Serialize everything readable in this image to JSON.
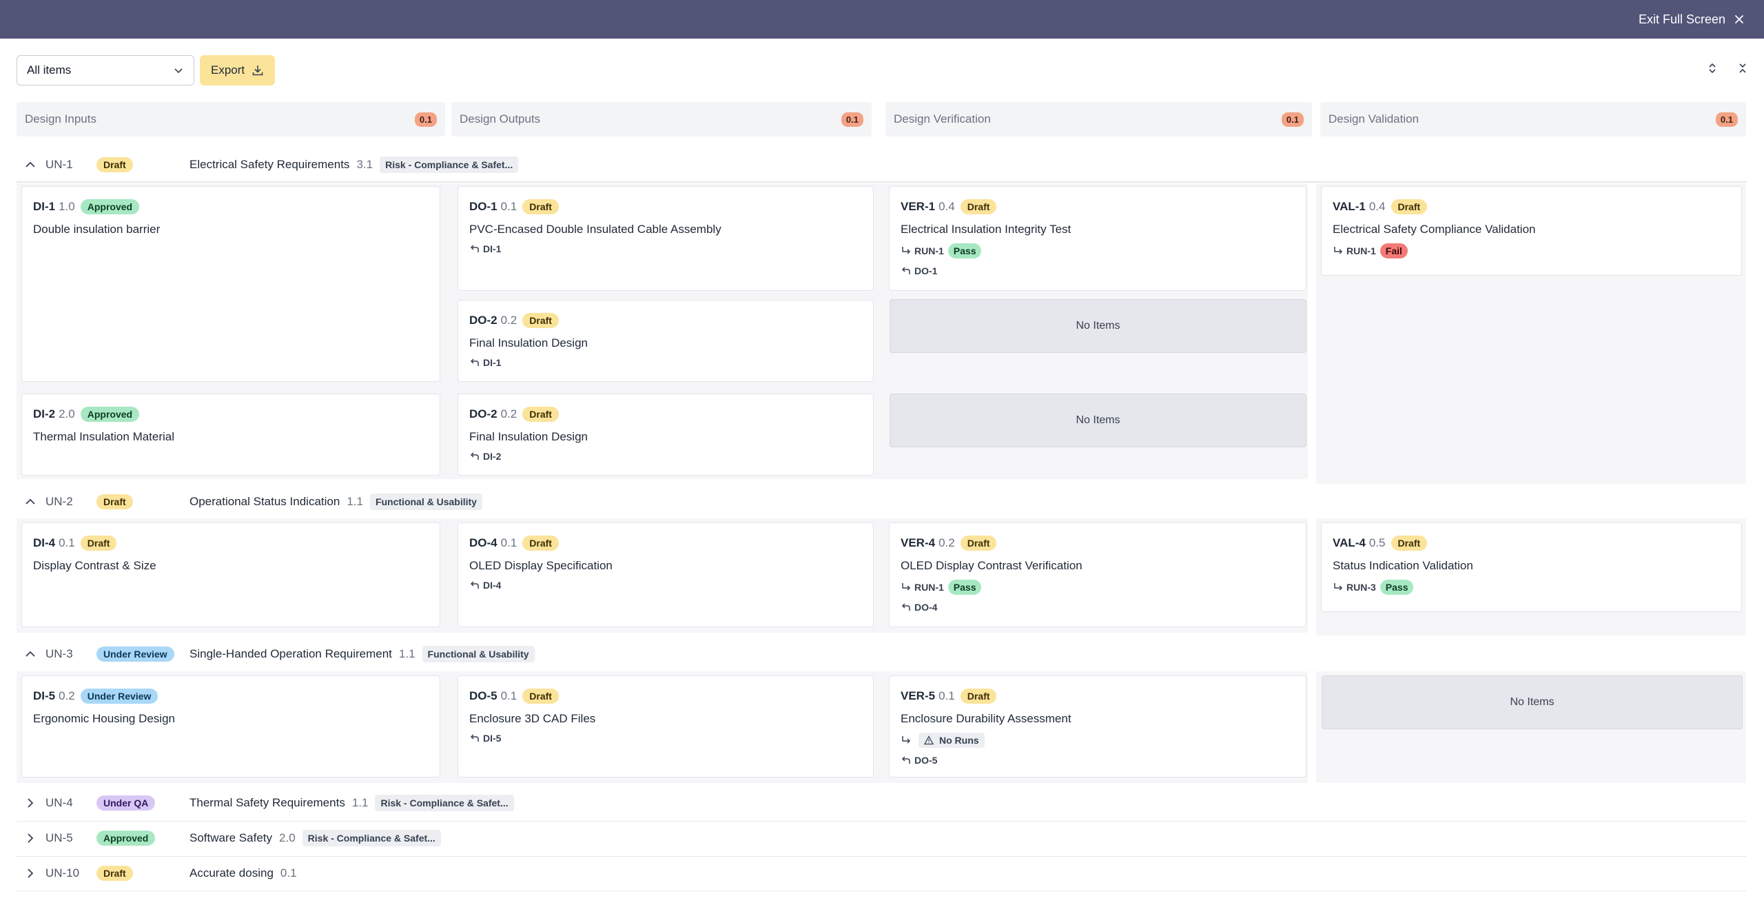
{
  "header": {
    "exit_label": "Exit Full Screen"
  },
  "toolbar": {
    "filter_value": "All items",
    "export_label": "Export"
  },
  "columns": [
    {
      "title": "Design Inputs",
      "badge": "0.1"
    },
    {
      "title": "Design Outputs",
      "badge": "0.1"
    },
    {
      "title": "Design Verification",
      "badge": "0.1"
    },
    {
      "title": "Design Validation",
      "badge": "0.1"
    }
  ],
  "no_items_label": "No Items",
  "groups": [
    {
      "id": "UN-1",
      "status": "Draft",
      "title": "Electrical Safety Requirements",
      "version": "3.1",
      "tag": "Risk - Compliance & Safet..."
    },
    {
      "id": "UN-2",
      "status": "Draft",
      "title": "Operational Status Indication",
      "version": "1.1",
      "tag": "Functional & Usability"
    },
    {
      "id": "UN-3",
      "status": "Under Review",
      "title": "Single-Handed Operation Requirement",
      "version": "1.1",
      "tag": "Functional & Usability"
    },
    {
      "id": "UN-4",
      "status": "Under QA",
      "title": "Thermal Safety Requirements",
      "version": "1.1",
      "tag": "Risk - Compliance & Safet..."
    },
    {
      "id": "UN-5",
      "status": "Approved",
      "title": "Software Safety",
      "version": "2.0",
      "tag": "Risk - Compliance & Safet..."
    },
    {
      "id": "UN-10",
      "status": "Draft",
      "title": "Accurate dosing",
      "version": "0.1",
      "tag": ""
    }
  ],
  "cards": {
    "di1": {
      "id": "DI-1",
      "ver": "1.0",
      "status": "Approved",
      "title": "Double insulation barrier"
    },
    "di2": {
      "id": "DI-2",
      "ver": "2.0",
      "status": "Approved",
      "title": "Thermal Insulation Material"
    },
    "do1": {
      "id": "DO-1",
      "ver": "0.1",
      "status": "Draft",
      "title": "PVC-Encased Double Insulated Cable Assembly",
      "link": "DI-1"
    },
    "do2a": {
      "id": "DO-2",
      "ver": "0.2",
      "status": "Draft",
      "title": "Final Insulation Design",
      "link": "DI-1"
    },
    "do2b": {
      "id": "DO-2",
      "ver": "0.2",
      "status": "Draft",
      "title": "Final Insulation Design",
      "link": "DI-2"
    },
    "ver1": {
      "id": "VER-1",
      "ver": "0.4",
      "status": "Draft",
      "title": "Electrical Insulation Integrity Test",
      "run": "RUN-1",
      "result": "Pass",
      "link": "DO-1"
    },
    "val1": {
      "id": "VAL-1",
      "ver": "0.4",
      "status": "Draft",
      "title": "Electrical Safety Compliance Validation",
      "run": "RUN-1",
      "result": "Fail"
    },
    "di4": {
      "id": "DI-4",
      "ver": "0.1",
      "status": "Draft",
      "title": "Display Contrast & Size"
    },
    "do4": {
      "id": "DO-4",
      "ver": "0.1",
      "status": "Draft",
      "title": "OLED Display Specification",
      "link": "DI-4"
    },
    "ver4": {
      "id": "VER-4",
      "ver": "0.2",
      "status": "Draft",
      "title": "OLED Display Contrast Verification",
      "run": "RUN-1",
      "result": "Pass",
      "link": "DO-4"
    },
    "val4": {
      "id": "VAL-4",
      "ver": "0.5",
      "status": "Draft",
      "title": "Status Indication Validation",
      "run": "RUN-3",
      "result": "Pass"
    },
    "di5": {
      "id": "DI-5",
      "ver": "0.2",
      "status": "Under Review",
      "title": "Ergonomic Housing Design"
    },
    "do5": {
      "id": "DO-5",
      "ver": "0.1",
      "status": "Draft",
      "title": "Enclosure 3D CAD Files",
      "link": "DI-5"
    },
    "ver5": {
      "id": "VER-5",
      "ver": "0.1",
      "status": "Draft",
      "title": "Enclosure Durability Assessment",
      "no_runs": "No Runs",
      "link": "DO-5"
    }
  }
}
